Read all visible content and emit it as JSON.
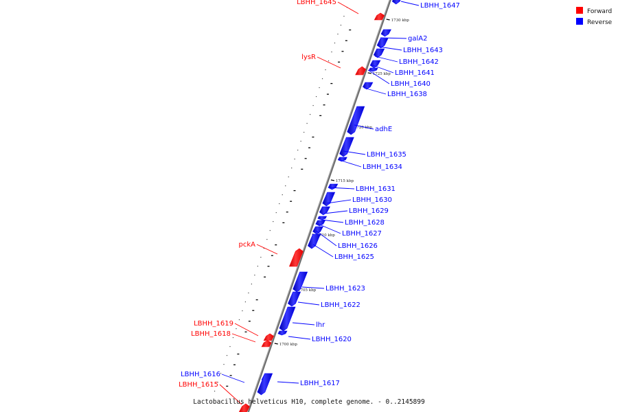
{
  "caption": "Lactobacillus helveticus H10, complete genome. - 0..2145899",
  "legend": [
    {
      "label": "Forward",
      "color": "#ff0000"
    },
    {
      "label": "Reverse",
      "color": "#0000ff"
    }
  ],
  "strands": {
    "forward": "#ff0000",
    "reverse": "#0000ff"
  },
  "ticks": [
    "1730 kbp",
    "1725 kbp",
    "1720 kbp",
    "1715 kbp",
    "1710 kbp",
    "1705 kbp",
    "1700 kbp"
  ],
  "genes": [
    {
      "name": "LBHH_1647",
      "strand": "reverse"
    },
    {
      "name": "LBHH_1645",
      "strand": "forward"
    },
    {
      "name": "galA2",
      "strand": "reverse"
    },
    {
      "name": "LBHH_1643",
      "strand": "reverse"
    },
    {
      "name": "LBHH_1642",
      "strand": "reverse"
    },
    {
      "name": "lysR",
      "strand": "forward"
    },
    {
      "name": "LBHH_1641",
      "strand": "reverse"
    },
    {
      "name": "LBHH_1640",
      "strand": "reverse"
    },
    {
      "name": "LBHH_1638",
      "strand": "reverse"
    },
    {
      "name": "adhE",
      "strand": "reverse"
    },
    {
      "name": "LBHH_1635",
      "strand": "reverse"
    },
    {
      "name": "LBHH_1634",
      "strand": "reverse"
    },
    {
      "name": "LBHH_1631",
      "strand": "reverse"
    },
    {
      "name": "LBHH_1630",
      "strand": "reverse"
    },
    {
      "name": "LBHH_1629",
      "strand": "reverse"
    },
    {
      "name": "LBHH_1628",
      "strand": "reverse"
    },
    {
      "name": "LBHH_1627",
      "strand": "reverse"
    },
    {
      "name": "pckA",
      "strand": "forward"
    },
    {
      "name": "LBHH_1626",
      "strand": "reverse"
    },
    {
      "name": "LBHH_1625",
      "strand": "reverse"
    },
    {
      "name": "LBHH_1623",
      "strand": "reverse"
    },
    {
      "name": "LBHH_1622",
      "strand": "reverse"
    },
    {
      "name": "lhr",
      "strand": "reverse"
    },
    {
      "name": "LBHH_1619",
      "strand": "forward"
    },
    {
      "name": "LBHH_1618",
      "strand": "forward"
    },
    {
      "name": "LBHH_1620",
      "strand": "reverse"
    },
    {
      "name": "LBHH_1616",
      "strand": "reverse"
    },
    {
      "name": "LBHH_1617",
      "strand": "reverse"
    },
    {
      "name": "LBHH_1615",
      "strand": "forward"
    }
  ]
}
